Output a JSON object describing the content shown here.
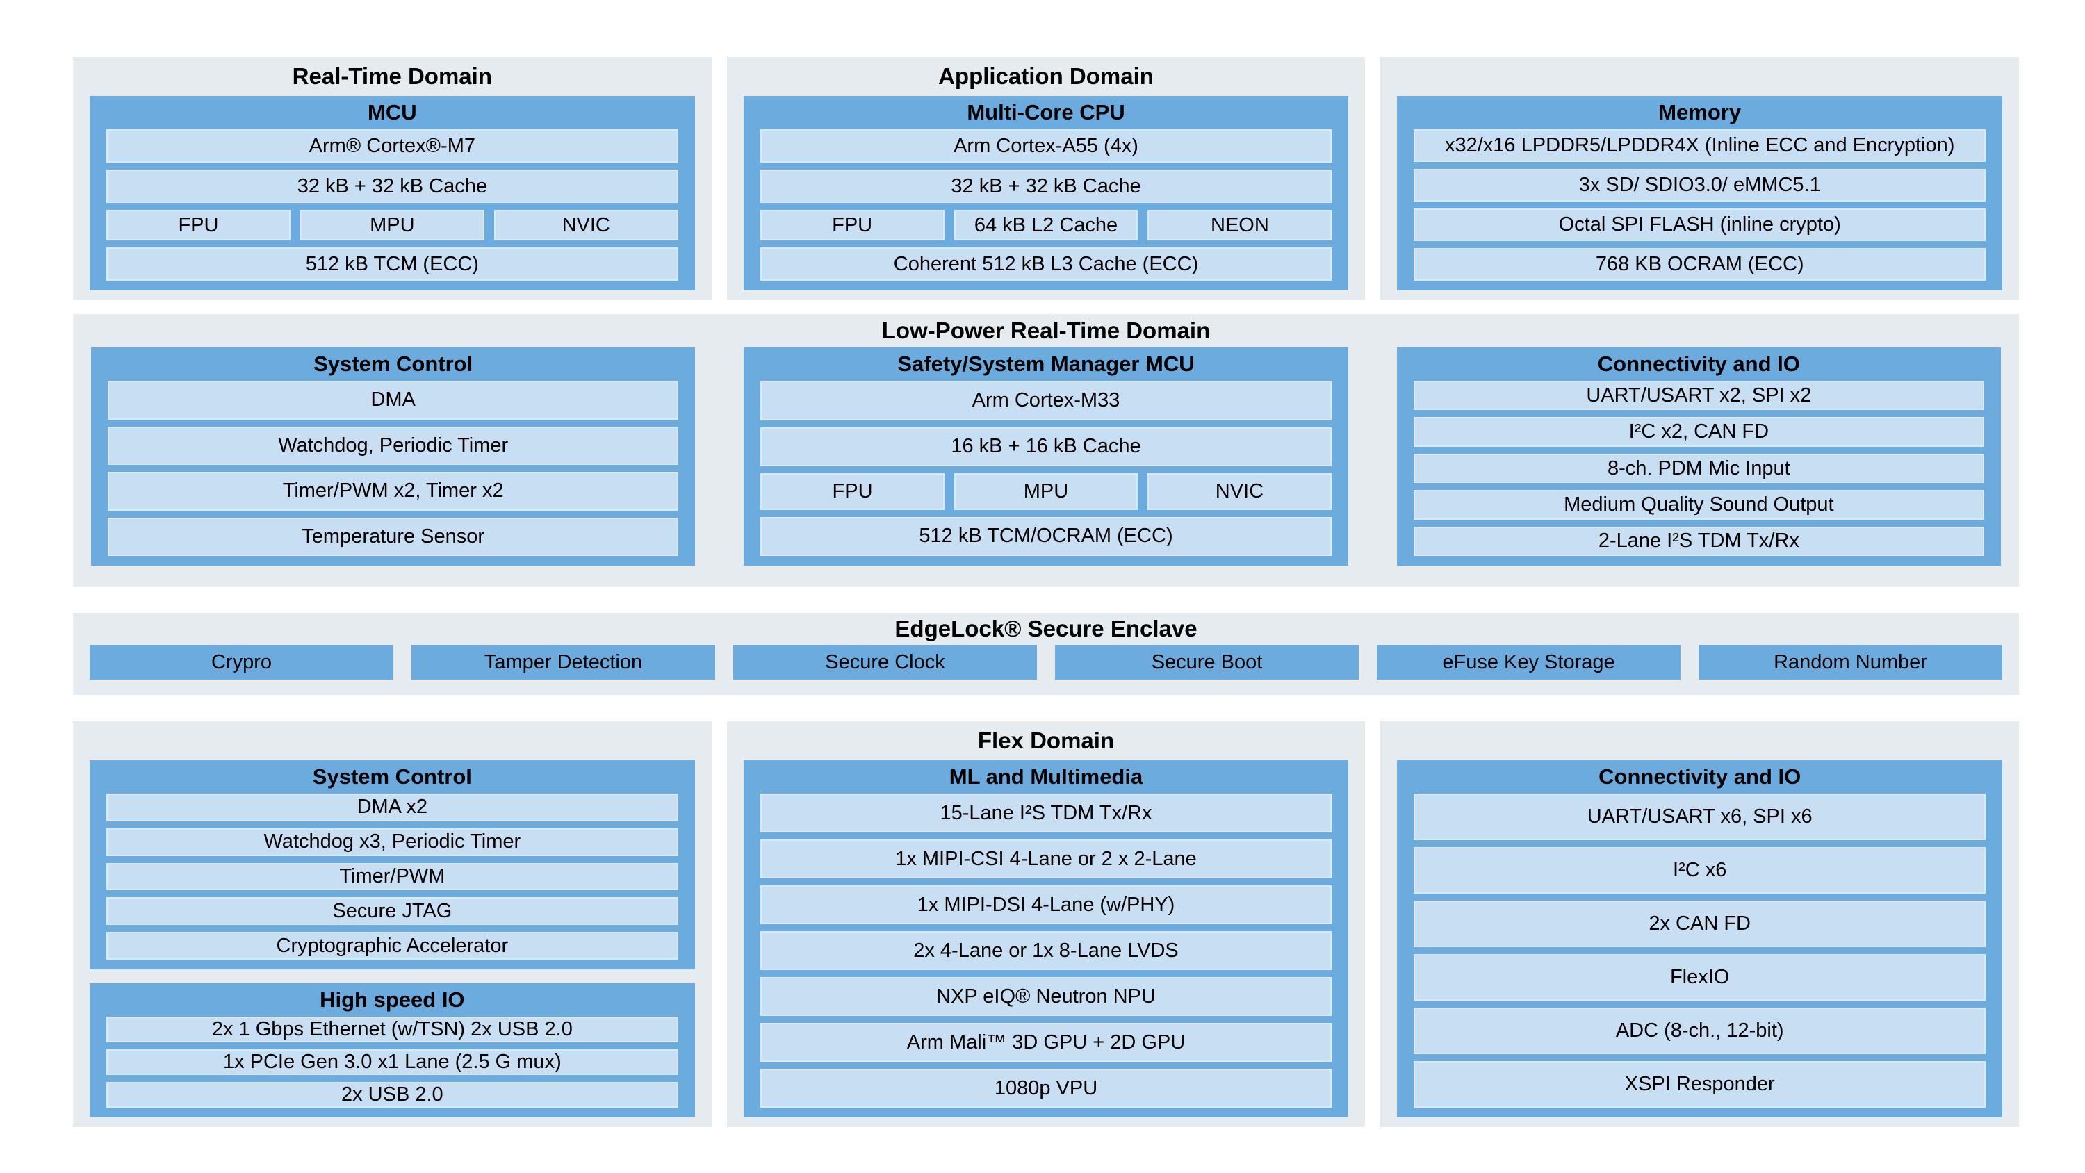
{
  "colors": {
    "page_bg": "#ffffff",
    "panel_bg": "#e5ebef",
    "block_blue": "#6babdd",
    "cell_blue": "#c8def3",
    "text": "#000000"
  },
  "r1": {
    "p1": {
      "title": "Real-Time Domain",
      "header": "MCU",
      "c1": "Arm® Cortex®-M7",
      "c2": "32 kB + 32 kB Cache",
      "c3a": "FPU",
      "c3b": "MPU",
      "c3c": "NVIC",
      "c4": "512 kB TCM (ECC)"
    },
    "p2": {
      "title": "Application Domain",
      "header": "Multi-Core CPU",
      "c1": "Arm Cortex-A55 (4x)",
      "c2": "32 kB + 32 kB Cache",
      "c3a": "FPU",
      "c3b": "64 kB L2 Cache",
      "c3c": "NEON",
      "c4": "Coherent 512 kB L3 Cache (ECC)"
    },
    "p3": {
      "header": "Memory",
      "c1": "x32/x16 LPDDR5/LPDDR4X (Inline ECC and Encryption)",
      "c2": "3x SD/ SDIO3.0/ eMMC5.1",
      "c3": "Octal SPI FLASH (inline crypto)",
      "c4": "768 KB OCRAM (ECC)"
    }
  },
  "r2": {
    "title": "Low-Power Real-Time Domain",
    "b1": {
      "header": "System Control",
      "c1": "DMA",
      "c2": "Watchdog, Periodic Timer",
      "c3": "Timer/PWM x2, Timer x2",
      "c4": "Temperature Sensor"
    },
    "b2": {
      "header": "Safety/System Manager MCU",
      "c1": "Arm Cortex-M33",
      "c2": "16 kB + 16 kB Cache",
      "c3a": "FPU",
      "c3b": "MPU",
      "c3c": "NVIC",
      "c4": "512 kB TCM/OCRAM (ECC)"
    },
    "b3": {
      "header": "Connectivity and IO",
      "c1": "UART/USART x2, SPI x2",
      "c2": "I²C x2, CAN FD",
      "c3": "8-ch. PDM Mic Input",
      "c4": "Medium Quality Sound Output",
      "c5": "2-Lane I²S TDM Tx/Rx"
    }
  },
  "r3": {
    "title": "EdgeLock® Secure Enclave",
    "b1": "Crypro",
    "b2": "Tamper Detection",
    "b3": "Secure Clock",
    "b4": "Secure Boot",
    "b5": "eFuse Key Storage",
    "b6": "Random Number"
  },
  "r4": {
    "p1": {
      "b1": {
        "header": "System Control",
        "c1": "DMA x2",
        "c2": "Watchdog x3, Periodic Timer",
        "c3": "Timer/PWM",
        "c4": "Secure JTAG",
        "c5": "Cryptographic Accelerator"
      },
      "b2": {
        "header": "High speed IO",
        "c1": "2x 1 Gbps Ethernet (w/TSN) 2x USB 2.0",
        "c2": "1x PCIe Gen 3.0 x1 Lane (2.5 G mux)",
        "c3": "2x USB 2.0"
      }
    },
    "p2": {
      "title": "Flex Domain",
      "header": "ML and Multimedia",
      "c1": "15-Lane I²S TDM Tx/Rx",
      "c2": "1x MIPI-CSI 4-Lane or 2 x 2-Lane",
      "c3": "1x MIPI-DSI 4-Lane (w/PHY)",
      "c4": "2x 4-Lane or 1x 8-Lane LVDS",
      "c5": "NXP eIQ® Neutron NPU",
      "c6": "Arm Mali™ 3D GPU + 2D GPU",
      "c7": "1080p VPU"
    },
    "p3": {
      "header": "Connectivity and IO",
      "c1": "UART/USART x6, SPI x6",
      "c2": "I²C x6",
      "c3": "2x CAN FD",
      "c4": "FlexIO",
      "c5": "ADC (8-ch., 12-bit)",
      "c6": "XSPI Responder"
    }
  }
}
